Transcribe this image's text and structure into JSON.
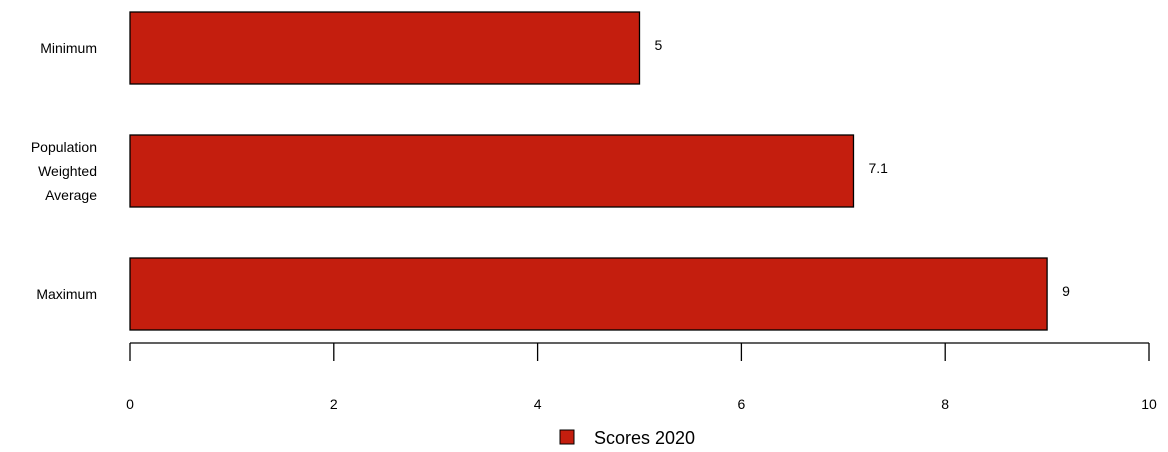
{
  "chart_data": {
    "type": "bar",
    "orientation": "horizontal",
    "categories": [
      [
        "Minimum"
      ],
      [
        "Population",
        "Weighted",
        "Average"
      ],
      [
        "Maximum"
      ]
    ],
    "series": [
      {
        "name": "Scores  2020",
        "values": [
          5,
          7.1,
          9
        ],
        "data_labels": [
          "5",
          "7.1",
          "9"
        ],
        "color": "#C41E0E"
      }
    ],
    "xlim": [
      0,
      10
    ],
    "xticks": [
      0,
      2,
      4,
      6,
      8,
      10
    ],
    "title": "",
    "xlabel": "",
    "ylabel": "",
    "grid": false,
    "legend_position": "bottom"
  }
}
